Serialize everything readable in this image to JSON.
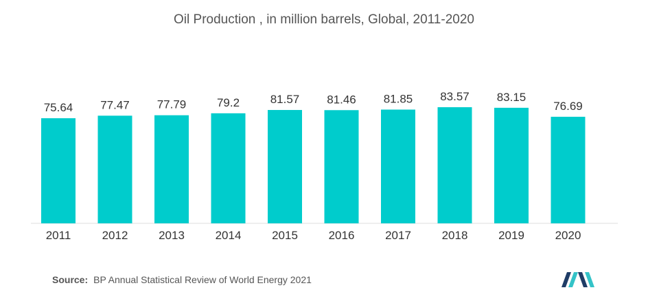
{
  "chart_data": {
    "type": "bar",
    "title": "Oil Production , in million barrels, Global, 2011-2020",
    "categories": [
      "2011",
      "2012",
      "2013",
      "2014",
      "2015",
      "2016",
      "2017",
      "2018",
      "2019",
      "2020"
    ],
    "values": [
      75.64,
      77.47,
      77.79,
      79.2,
      81.57,
      81.46,
      81.85,
      83.57,
      83.15,
      76.69
    ],
    "value_labels": [
      "75.64",
      "77.47",
      "77.79",
      "79.2",
      "81.57",
      "81.46",
      "81.85",
      "83.57",
      "83.15",
      "76.69"
    ],
    "xlabel": "",
    "ylabel": "",
    "ylim": [
      0,
      83.57
    ],
    "grid": false,
    "legend": "none",
    "bar_color": "#00cccc",
    "axis_color": "#dddddd",
    "label_color": "#333333"
  },
  "source": {
    "label": "Source:",
    "text": "BP Annual Statistical Review of World Energy 2021"
  },
  "logo": {
    "icon": "mordor-intelligence-logo-icon",
    "colors": [
      "#1f3c66",
      "#34c3c8"
    ]
  }
}
